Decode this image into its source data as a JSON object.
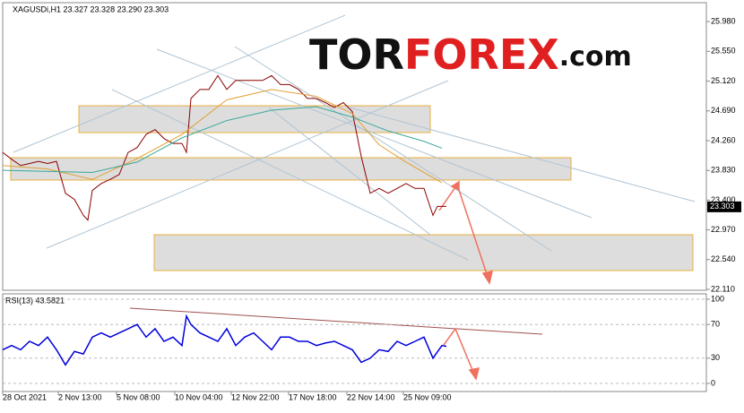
{
  "logo": {
    "parts": [
      "TOR",
      "FOREX",
      ".com"
    ]
  },
  "chart_data": [
    {
      "type": "line",
      "title": "XAGUSDi,H1  23.327 23.328 23.290 23.303",
      "last_value": 23.303,
      "xlim": [
        0,
        785
      ],
      "xticks": [
        {
          "value": 0,
          "label": "28 Oct 2021"
        },
        {
          "value": 62,
          "label": "2 Nov 13:00"
        },
        {
          "value": 127,
          "label": "5 Nov 08:00"
        },
        {
          "value": 192,
          "label": "10 Nov 04:00"
        },
        {
          "value": 255,
          "label": "12 Nov 22:00"
        },
        {
          "value": 319,
          "label": "17 Nov 18:00"
        },
        {
          "value": 384,
          "label": "22 Nov 14:00"
        },
        {
          "value": 447,
          "label": "25 Nov 09:00"
        }
      ],
      "ylim": [
        22.097,
        26.254
      ],
      "yticks": [
        {
          "value": 25.98,
          "label": "25.980"
        },
        {
          "value": 25.55,
          "label": "25.550"
        },
        {
          "value": 25.12,
          "label": "25.120"
        },
        {
          "value": 24.69,
          "label": "24.690"
        },
        {
          "value": 24.26,
          "label": "24.260"
        },
        {
          "value": 23.83,
          "label": "23.830"
        },
        {
          "value": 23.4,
          "label": "23.400"
        },
        {
          "value": 22.97,
          "label": "22.970"
        },
        {
          "value": 22.54,
          "label": "22.540"
        },
        {
          "value": 22.11,
          "label": "22.110"
        }
      ],
      "series": [
        {
          "color": "#8b0000",
          "x": [
            0,
            10,
            20,
            30,
            40,
            50,
            60,
            70,
            80,
            90,
            95,
            100,
            110,
            120,
            130,
            140,
            150,
            160,
            170,
            180,
            190,
            200,
            205,
            210,
            220,
            230,
            240,
            250,
            260,
            270,
            280,
            290,
            300,
            310,
            320,
            330,
            340,
            350,
            360,
            370,
            380,
            390,
            400,
            410,
            420,
            430,
            440,
            450,
            460,
            470,
            480,
            485,
            495
          ],
          "values": [
            24.09,
            23.99,
            23.9,
            23.93,
            23.96,
            23.93,
            23.96,
            23.5,
            23.41,
            23.18,
            23.11,
            23.54,
            23.64,
            23.7,
            23.77,
            24.09,
            24.16,
            24.35,
            24.42,
            24.29,
            24.22,
            24.22,
            24.09,
            24.87,
            25.0,
            25.0,
            25.2,
            25.0,
            25.13,
            25.13,
            25.13,
            25.13,
            25.2,
            25.07,
            25.07,
            25.0,
            24.87,
            24.87,
            24.81,
            24.74,
            24.81,
            24.68,
            24.03,
            23.5,
            23.57,
            23.5,
            23.57,
            23.64,
            23.57,
            23.57,
            23.18,
            23.31,
            23.31
          ]
        },
        {
          "color": "#e0a030",
          "x": [
            0,
            50,
            100,
            150,
            200,
            250,
            300,
            350,
            390,
            420,
            450,
            490
          ],
          "values": [
            23.9,
            23.85,
            23.7,
            24.0,
            24.35,
            24.85,
            25.0,
            24.9,
            24.65,
            24.2,
            23.95,
            23.65
          ]
        },
        {
          "color": "#3aa89a",
          "x": [
            0,
            100,
            150,
            200,
            250,
            300,
            350,
            390,
            430,
            470,
            490
          ],
          "values": [
            23.83,
            23.8,
            23.95,
            24.3,
            24.55,
            24.7,
            24.75,
            24.6,
            24.4,
            24.25,
            24.15
          ]
        }
      ]
    },
    {
      "type": "line",
      "title": "RSI(13) 43.5821",
      "xlim": [
        0,
        785
      ],
      "ylim": [
        -9.6,
        106.4
      ],
      "yticks": [
        0,
        30,
        70,
        100
      ],
      "series": [
        {
          "color": "#0000dd",
          "x": [
            0,
            10,
            20,
            30,
            40,
            50,
            60,
            70,
            80,
            90,
            100,
            110,
            120,
            130,
            140,
            150,
            160,
            170,
            180,
            190,
            200,
            205,
            210,
            220,
            230,
            240,
            250,
            260,
            270,
            280,
            290,
            300,
            310,
            320,
            330,
            340,
            350,
            360,
            370,
            380,
            390,
            400,
            410,
            420,
            430,
            440,
            450,
            460,
            470,
            480,
            490,
            495
          ],
          "values": [
            40,
            45,
            40,
            50,
            45,
            55,
            40,
            22,
            38,
            35,
            55,
            60,
            55,
            60,
            65,
            70,
            55,
            65,
            50,
            55,
            45,
            80,
            70,
            60,
            55,
            50,
            65,
            45,
            55,
            60,
            50,
            40,
            55,
            55,
            50,
            50,
            45,
            48,
            50,
            45,
            40,
            25,
            30,
            40,
            38,
            50,
            45,
            50,
            55,
            30,
            45,
            44
          ]
        }
      ]
    }
  ]
}
